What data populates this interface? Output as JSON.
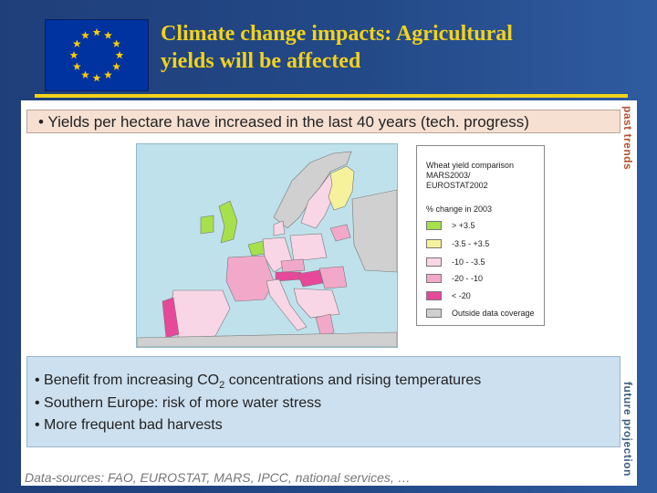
{
  "header": {
    "title_line1": "Climate change impacts: Agricultural",
    "title_line2": "yields will be affected",
    "flag_icon": "eu-flag-icon"
  },
  "top_box": {
    "text": "• Yields per hectare have increased in the last 40 years (tech. progress)"
  },
  "side_labels": {
    "past": "past trends",
    "future": "future projection"
  },
  "legend": {
    "title_l1": "Wheat yield comparison",
    "title_l2": "MARS2003/",
    "title_l3": "EUROSTAT2002",
    "subtitle": "% change in 2003",
    "items": [
      {
        "label": "> +3.5",
        "color": "#a6e04a"
      },
      {
        "label": "-3.5 - +3.5",
        "color": "#f6f29c"
      },
      {
        "label": "-10 - -3.5",
        "color": "#f8d6e6"
      },
      {
        "label": "-20 - -10",
        "color": "#f2a9c9"
      },
      {
        "label": "< -20",
        "color": "#e8489a"
      },
      {
        "label": "Outside data coverage",
        "color": "#d0d0d0"
      }
    ]
  },
  "bottom_box": {
    "b1_pre": "• Benefit from increasing  CO",
    "b1_sub": "2",
    "b1_post": " concentrations and rising temperatures",
    "b2": "• Southern Europe: risk of more water stress",
    "b3": "• More frequent bad harvests"
  },
  "footer": {
    "sources": "Data-sources: FAO, EUROSTAT, MARS, IPCC, national services, …"
  },
  "colors": {
    "title": "#f3d21a",
    "background": "#234987",
    "flag_blue": "#0033a0",
    "sea": "#bfe1ec"
  }
}
